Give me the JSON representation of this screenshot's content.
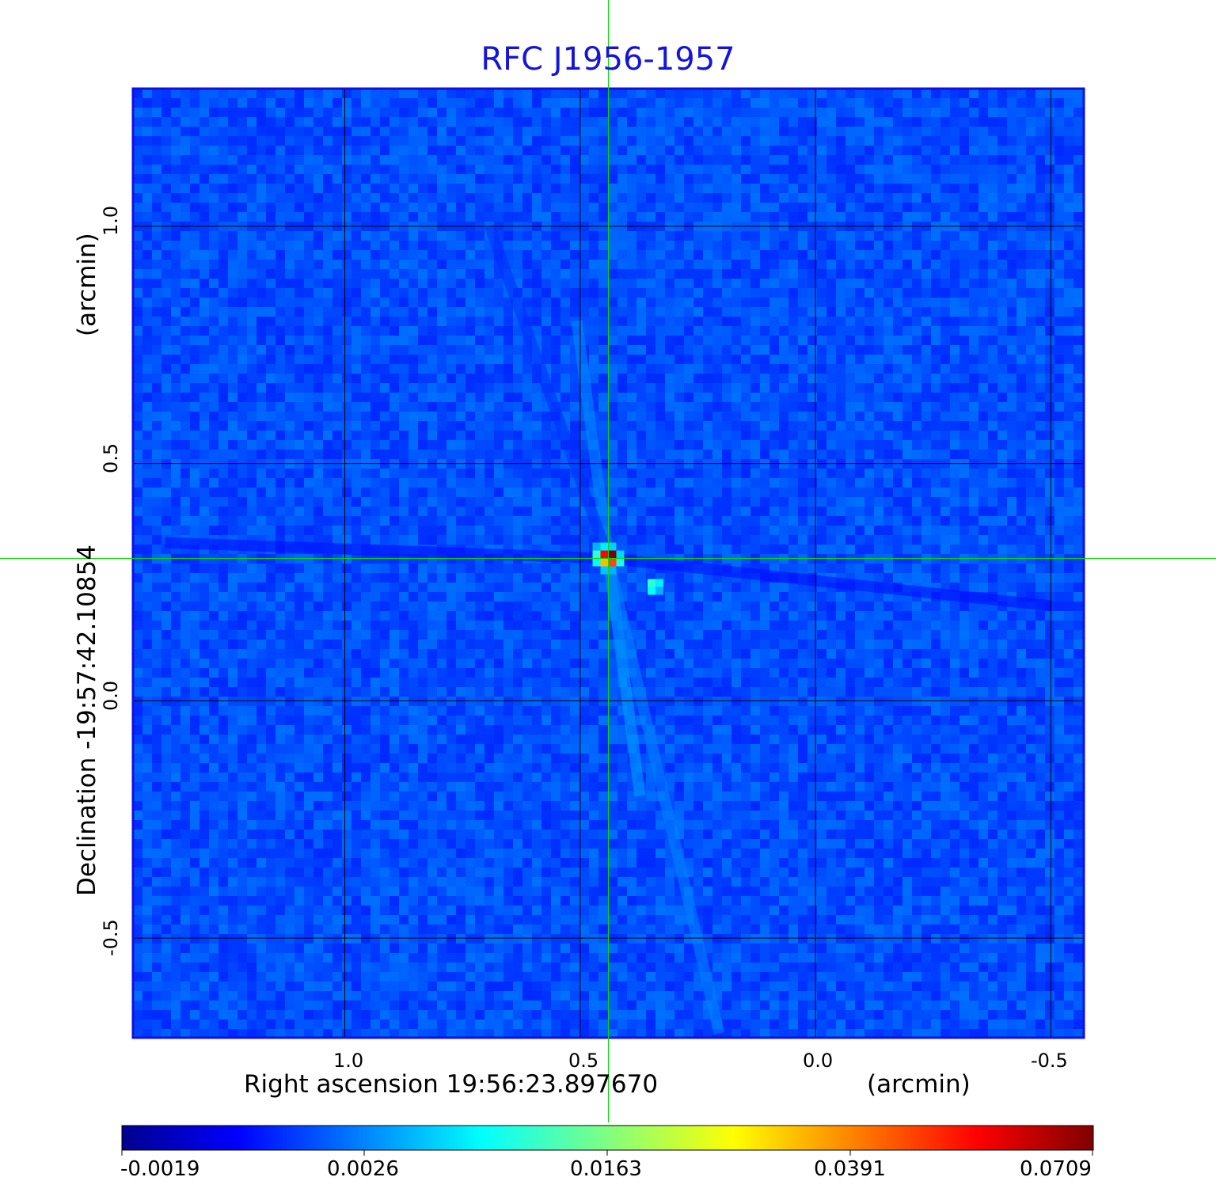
{
  "chart_data": {
    "type": "heatmap",
    "title": "RFC J1956-1957",
    "xlabel": "Right ascension  19:56:23.897670",
    "xlabel_unit": "(arcmin)",
    "ylabel": "Declination  -19:57:42.10854",
    "ylabel_unit": "(arcmin)",
    "x_range": [
      1.45,
      -0.57
    ],
    "y_range": [
      -0.71,
      1.29
    ],
    "x_ticks": [
      1.0,
      0.5,
      0.0,
      -0.5
    ],
    "x_tick_labels": [
      "1.0",
      "0.5",
      "0.0",
      "-0.5"
    ],
    "y_ticks": [
      1.0,
      0.5,
      0.0,
      -0.5
    ],
    "y_tick_labels": [
      "1.0",
      "0.5",
      "0.0",
      "-0.5"
    ],
    "grid": true,
    "crosshair": {
      "x": 0.44,
      "y": 0.3
    },
    "colorbar": {
      "colormap": "jet",
      "placement": "bottom",
      "tick_labels": [
        "-0.0019",
        "0.0026",
        "0.0163",
        "0.0391",
        "0.0709"
      ],
      "range": [
        -0.0019,
        0.0709
      ]
    },
    "peak": {
      "x": 0.44,
      "y": 0.3,
      "value": 0.0709
    },
    "components": [
      {
        "x": 0.42,
        "y": 0.29,
        "value": 0.048
      },
      {
        "x": 0.34,
        "y": 0.24,
        "value": 0.014
      }
    ],
    "background_level": 0.0
  },
  "colors": {
    "title": "#1414dc",
    "frame": "#1010e0",
    "grid": "#000000",
    "crosshair": "#00dd00",
    "background_map": "#2e6cf4"
  }
}
